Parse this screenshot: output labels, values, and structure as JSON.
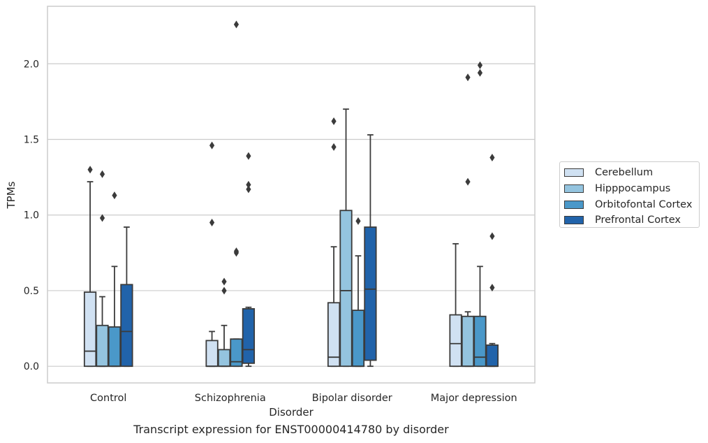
{
  "chart_data": {
    "type": "box",
    "xlabel": "Disorder",
    "ylabel": "TPMs",
    "caption": "Transcript expression for ENST00000414780 by disorder",
    "ylim": [
      -0.11,
      2.38
    ],
    "yticks": [
      "0.0",
      "0.5",
      "1.0",
      "1.5",
      "2.0"
    ],
    "grid": "horizontal",
    "legend_position": "right",
    "categories": [
      "Control",
      "Schizophrenia",
      "Bipolar disorder",
      "Major depression"
    ],
    "series": [
      {
        "name": "Cerebellum",
        "color": "#d0e1f2",
        "boxes": [
          {
            "whislo": 0,
            "q1": 0,
            "med": 0.1,
            "q3": 0.49,
            "whishi": 1.22,
            "fliers": [
              1.3
            ]
          },
          {
            "whislo": 0,
            "q1": 0,
            "med": 0,
            "q3": 0.17,
            "whishi": 0.23,
            "fliers": [
              0.95,
              1.46
            ]
          },
          {
            "whislo": 0,
            "q1": 0,
            "med": 0.06,
            "q3": 0.42,
            "whishi": 0.79,
            "fliers": [
              1.45,
              1.62
            ]
          },
          {
            "whislo": 0,
            "q1": 0,
            "med": 0.15,
            "q3": 0.34,
            "whishi": 0.81,
            "fliers": []
          }
        ]
      },
      {
        "name": "Hipppocampus",
        "color": "#94c4df",
        "boxes": [
          {
            "whislo": 0,
            "q1": 0,
            "med": 0,
            "q3": 0.27,
            "whishi": 0.46,
            "fliers": [
              0.98,
              1.27
            ]
          },
          {
            "whislo": 0,
            "q1": 0,
            "med": 0,
            "q3": 0.11,
            "whishi": 0.27,
            "fliers": [
              0.5,
              0.56
            ]
          },
          {
            "whislo": 0,
            "q1": 0,
            "med": 0.5,
            "q3": 1.03,
            "whishi": 1.7,
            "fliers": []
          },
          {
            "whislo": 0,
            "q1": 0,
            "med": 0,
            "q3": 0.33,
            "whishi": 0.36,
            "fliers": [
              1.22,
              1.91
            ]
          }
        ]
      },
      {
        "name": "Orbitofontal Cortex",
        "color": "#4a98c9",
        "boxes": [
          {
            "whislo": 0,
            "q1": 0,
            "med": 0,
            "q3": 0.26,
            "whishi": 0.66,
            "fliers": [
              1.13
            ]
          },
          {
            "whislo": 0,
            "q1": 0,
            "med": 0.03,
            "q3": 0.18,
            "whishi": 0.18,
            "fliers": [
              0.75,
              0.76,
              2.26
            ]
          },
          {
            "whislo": 0,
            "q1": 0,
            "med": 0,
            "q3": 0.37,
            "whishi": 0.73,
            "fliers": [
              0.96
            ]
          },
          {
            "whislo": 0,
            "q1": 0,
            "med": 0.06,
            "q3": 0.33,
            "whishi": 0.66,
            "fliers": [
              1.94,
              1.99
            ]
          }
        ]
      },
      {
        "name": "Prefrontal Cortex",
        "color": "#2163aa",
        "boxes": [
          {
            "whislo": 0,
            "q1": 0,
            "med": 0.23,
            "q3": 0.54,
            "whishi": 0.92,
            "fliers": []
          },
          {
            "whislo": 0,
            "q1": 0.02,
            "med": 0.11,
            "q3": 0.38,
            "whishi": 0.39,
            "fliers": [
              1.17,
              1.2,
              1.39
            ]
          },
          {
            "whislo": 0,
            "q1": 0.04,
            "med": 0.51,
            "q3": 0.92,
            "whishi": 1.53,
            "fliers": []
          },
          {
            "whislo": 0,
            "q1": 0,
            "med": 0,
            "q3": 0.14,
            "whishi": 0.15,
            "fliers": [
              0.52,
              0.86,
              1.38
            ]
          }
        ]
      }
    ]
  }
}
